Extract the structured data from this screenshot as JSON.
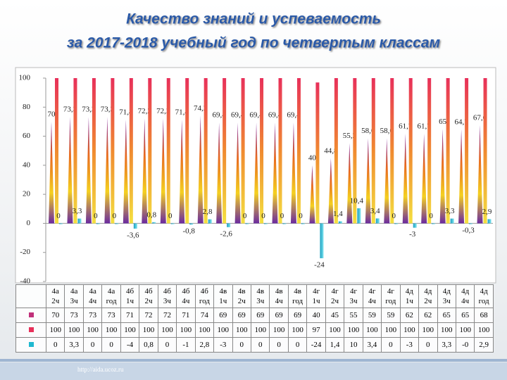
{
  "chart_data": {
    "type": "bar",
    "title": "Качество знаний и успеваемость",
    "subtitle": "за 2017-2018 учебный год по четвертым классам",
    "categories": [
      "4а 2ч",
      "4а 3ч",
      "4а 4ч",
      "4а год",
      "4б 1ч",
      "4б 2ч",
      "4б 3ч",
      "4б 4ч",
      "4б год",
      "4в 1ч",
      "4в 2ч",
      "4в 3ч",
      "4в 4ч",
      "4в год",
      "4г 1ч",
      "4г 2ч",
      "4г 3ч",
      "4г 4ч",
      "4г год",
      "4д 1ч",
      "4д 2ч",
      "4д 3ч",
      "4д 4ч",
      "4д год"
    ],
    "series": [
      {
        "color": "#c0307a",
        "values": [
          70,
          73.3,
          73.3,
          73.3,
          71.4,
          72.2,
          72.2,
          71.4,
          74.2,
          69.4,
          69.4,
          69.4,
          69.4,
          69.4,
          40,
          44.8,
          55.2,
          58.6,
          58.6,
          61.7,
          61.7,
          65,
          64.7,
          67.6
        ],
        "value_labels": [
          "70",
          "73,3",
          "73,3",
          "73,3",
          "71,4",
          "72,2",
          "72,2",
          "71,4",
          "74,2",
          "69,4",
          "69,4",
          "69,4",
          "69,4",
          "69,4",
          "40",
          "44,8",
          "55,2",
          "58,6",
          "58,6",
          "61,7",
          "61,7",
          "65",
          "64,7",
          "67,6"
        ],
        "table_labels": [
          "70",
          "73",
          "73",
          "73",
          "71",
          "72",
          "72",
          "71",
          "74",
          "69",
          "69",
          "69",
          "69",
          "69",
          "40",
          "45",
          "55",
          "59",
          "59",
          "62",
          "62",
          "65",
          "65",
          "68"
        ]
      },
      {
        "color": "#e8305a",
        "values": [
          100,
          100,
          100,
          100,
          100,
          100,
          100,
          100,
          100,
          100,
          100,
          100,
          100,
          100,
          97,
          100,
          100,
          100,
          100,
          100,
          100,
          100,
          100,
          100
        ],
        "table_labels": [
          "100",
          "100",
          "100",
          "100",
          "100",
          "100",
          "100",
          "100",
          "100",
          "100",
          "100",
          "100",
          "100",
          "100",
          "97",
          "100",
          "100",
          "100",
          "100",
          "100",
          "100",
          "100",
          "100",
          "100"
        ]
      },
      {
        "color": "#1fb8d0",
        "values": [
          0,
          3.3,
          0,
          0,
          -3.6,
          0.8,
          0,
          -0.8,
          2.8,
          -2.6,
          0,
          0,
          0,
          0,
          -24,
          1.4,
          10.4,
          3.4,
          0,
          -3,
          0,
          3.3,
          -0.3,
          2.9
        ],
        "value_labels": [
          "0",
          "3,3",
          "0",
          "0",
          "-3,6",
          "0,8",
          "0",
          "-0,8",
          "2,8",
          "-2,6",
          "0",
          "0",
          "0",
          "0",
          "-24",
          "1,4",
          "10,4",
          "3,4",
          "0",
          "-3",
          "0",
          "3,3",
          "-0,3",
          "2,9"
        ],
        "table_labels": [
          "0",
          "3,3",
          "0",
          "0",
          "-4",
          "0,8",
          "0",
          "-1",
          "2,8",
          "-3",
          "0",
          "0",
          "0",
          "0",
          "-24",
          "1,4",
          "10",
          "3,4",
          "0",
          "-3",
          "0",
          "3,3",
          "-0",
          "2,9"
        ]
      }
    ],
    "ylim": [
      -40,
      100
    ],
    "yticks": [
      -40,
      -20,
      0,
      20,
      40,
      60,
      80,
      100
    ],
    "grid": false,
    "footer": "http://aida.ucoz.ru"
  }
}
